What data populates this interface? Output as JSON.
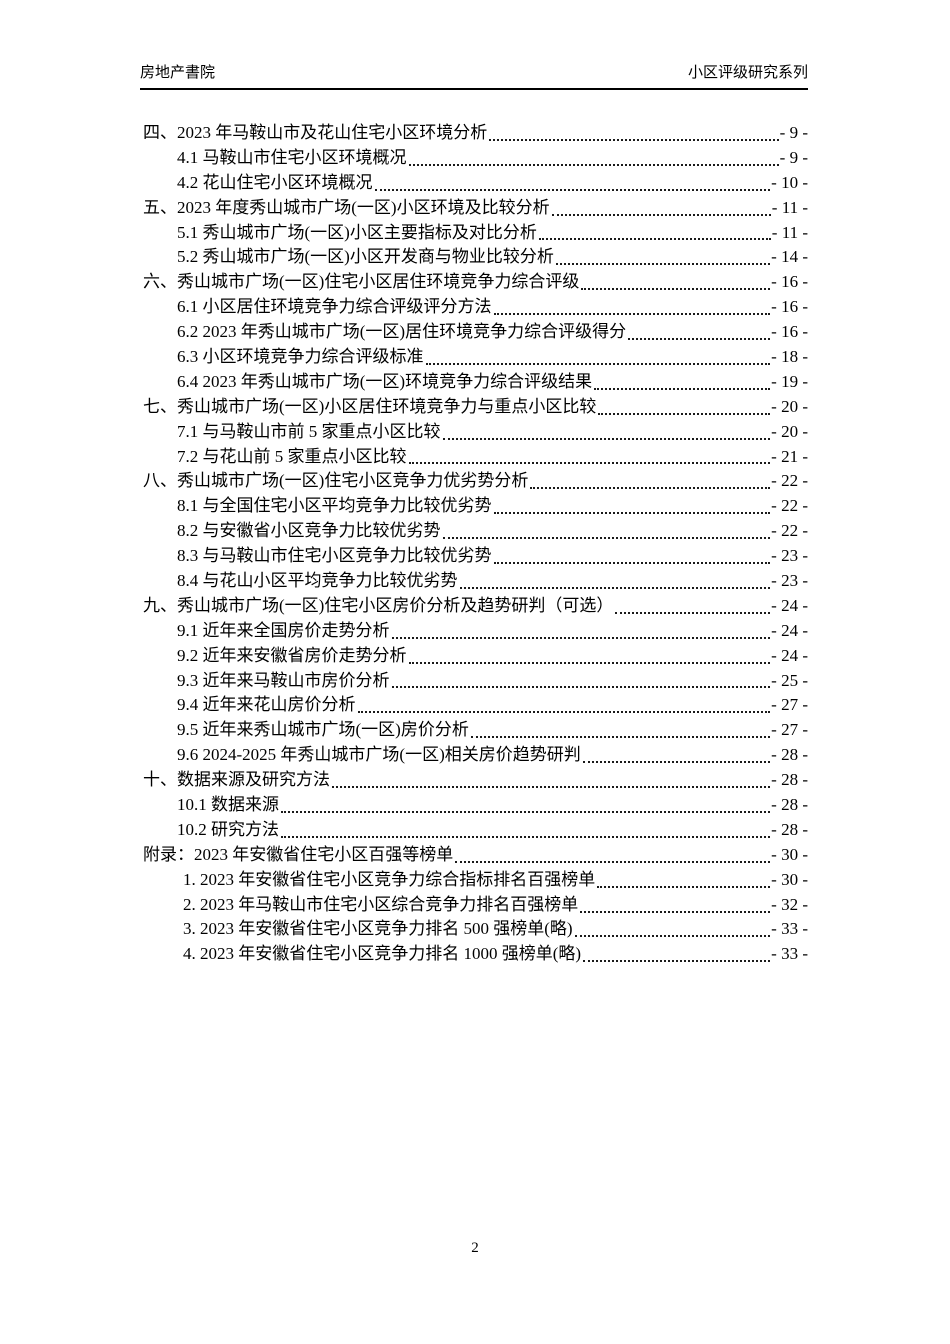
{
  "header": {
    "left": "房地产書院",
    "right": "小区评级研究系列"
  },
  "toc": {
    "entries": [
      {
        "level": 1,
        "title": "四、2023 年马鞍山市及花山住宅小区环境分析",
        "page": "- 9 -"
      },
      {
        "level": 2,
        "title": "4.1 马鞍山市住宅小区环境概况",
        "page": "- 9 -"
      },
      {
        "level": 2,
        "title": "4.2 花山住宅小区环境概况",
        "page": "- 10 -"
      },
      {
        "level": 1,
        "title": "五、2023 年度秀山城市广场(一区)小区环境及比较分析",
        "page": "- 11 -"
      },
      {
        "level": 2,
        "title": "5.1 秀山城市广场(一区)小区主要指标及对比分析",
        "page": "- 11 -"
      },
      {
        "level": 2,
        "title": "5.2 秀山城市广场(一区)小区开发商与物业比较分析",
        "page": "- 14 -"
      },
      {
        "level": 1,
        "title": "六、秀山城市广场(一区)住宅小区居住环境竞争力综合评级",
        "page": "- 16 -"
      },
      {
        "level": 2,
        "title": "6.1 小区居住环境竞争力综合评级评分方法",
        "page": "- 16 -"
      },
      {
        "level": 2,
        "title": "6.2 2023 年秀山城市广场(一区)居住环境竞争力综合评级得分",
        "page": "- 16 -"
      },
      {
        "level": 2,
        "title": "6.3 小区环境竞争力综合评级标准",
        "page": "- 18 -"
      },
      {
        "level": 2,
        "title": "6.4 2023 年秀山城市广场(一区)环境竞争力综合评级结果",
        "page": "- 19 -"
      },
      {
        "level": 1,
        "title": "七、秀山城市广场(一区)小区居住环境竞争力与重点小区比较",
        "page": "- 20 -"
      },
      {
        "level": 2,
        "title": "7.1 与马鞍山市前 5 家重点小区比较",
        "page": "- 20 -"
      },
      {
        "level": 2,
        "title": "7.2 与花山前 5 家重点小区比较",
        "page": "- 21 -"
      },
      {
        "level": 1,
        "title": "八、秀山城市广场(一区)住宅小区竞争力优劣势分析",
        "page": "- 22 -"
      },
      {
        "level": 2,
        "title": "8.1 与全国住宅小区平均竞争力比较优劣势",
        "page": "- 22 -"
      },
      {
        "level": 2,
        "title": "8.2 与安徽省小区竞争力比较优劣势",
        "page": "- 22 -"
      },
      {
        "level": 2,
        "title": "8.3 与马鞍山市住宅小区竞争力比较优劣势",
        "page": "- 23 -"
      },
      {
        "level": 2,
        "title": "8.4 与花山小区平均竞争力比较优劣势",
        "page": "- 23 -"
      },
      {
        "level": 1,
        "title": "九、秀山城市广场(一区)住宅小区房价分析及趋势研判（可选） ",
        "page": "- 24 -"
      },
      {
        "level": 2,
        "title": "9.1 近年来全国房价走势分析",
        "page": "- 24 -"
      },
      {
        "level": 2,
        "title": "9.2 近年来安徽省房价走势分析",
        "page": "- 24 -"
      },
      {
        "level": 2,
        "title": "9.3 近年来马鞍山市房价分析",
        "page": "- 25 -"
      },
      {
        "level": 2,
        "title": "9.4 近年来花山房价分析",
        "page": "- 27 -"
      },
      {
        "level": 2,
        "title": "9.5 近年来秀山城市广场(一区)房价分析",
        "page": "- 27 -"
      },
      {
        "level": 2,
        "title": "9.6 2024-2025 年秀山城市广场(一区)相关房价趋势研判",
        "page": "- 28 -"
      },
      {
        "level": 1,
        "title": "十、数据来源及研究方法",
        "page": "- 28 -"
      },
      {
        "level": 2,
        "title": "10.1 数据来源",
        "page": "- 28 -"
      },
      {
        "level": 2,
        "title": "10.2 研究方法",
        "page": "- 28 -"
      },
      {
        "level": 1,
        "title": "附录：2023 年安徽省住宅小区百强等榜单",
        "page": "- 30 -"
      },
      {
        "level": 3,
        "title": "1. 2023 年安徽省住宅小区竞争力综合指标排名百强榜单",
        "page": "- 30 -"
      },
      {
        "level": 3,
        "title": "2. 2023 年马鞍山市住宅小区综合竞争力排名百强榜单",
        "page": "- 32 -"
      },
      {
        "level": 3,
        "title": "3. 2023 年安徽省住宅小区竞争力排名 500 强榜单(略)",
        "page": "- 33 -"
      },
      {
        "level": 3,
        "title": "4. 2023 年安徽省住宅小区竞争力排名 1000 强榜单(略)",
        "page": "- 33 -"
      }
    ]
  },
  "footer": {
    "page_number": "2"
  }
}
